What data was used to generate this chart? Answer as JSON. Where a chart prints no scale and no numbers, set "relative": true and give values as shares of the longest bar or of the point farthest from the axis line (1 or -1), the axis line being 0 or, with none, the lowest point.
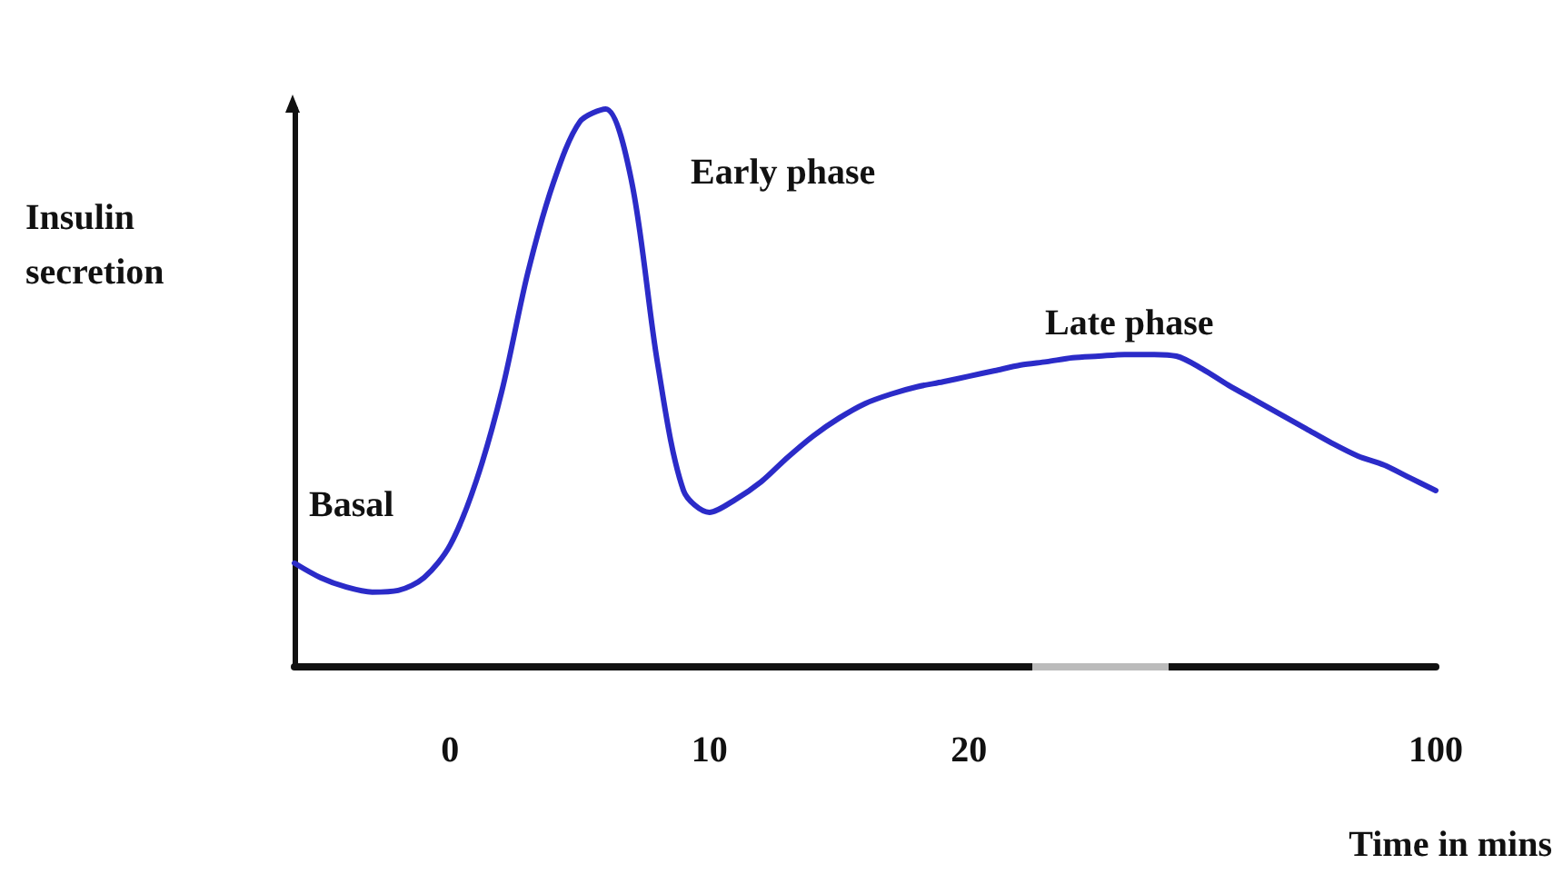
{
  "chart_data": {
    "type": "line",
    "relative": true,
    "xlabel": "Time in mins",
    "ylabel": "Insulin secretion",
    "color": "#2b2bc8",
    "categories": [
      null,
      null,
      null,
      null,
      null,
      null,
      "0",
      null,
      null,
      null,
      null,
      null,
      null,
      null,
      null,
      null,
      "10",
      null,
      null,
      null,
      null,
      null,
      null,
      null,
      null,
      null,
      "20",
      null,
      null,
      null,
      null,
      null,
      null,
      null,
      null,
      null,
      null,
      null,
      null,
      null,
      null,
      null,
      null,
      null,
      "100"
    ],
    "values": [
      0.186,
      0.16,
      0.143,
      0.134,
      0.137,
      0.16,
      0.218,
      0.332,
      0.495,
      0.707,
      0.87,
      0.977,
      1,
      0.87,
      0.544,
      0.316,
      0.277,
      0.3,
      0.332,
      0.375,
      0.414,
      0.446,
      0.472,
      0.489,
      0.502,
      0.511,
      0.521,
      0.531,
      0.541,
      0.547,
      0.554,
      0.557,
      0.56,
      0.56,
      0.557,
      0.534,
      0.505,
      0.479,
      0.453,
      0.427,
      0.401,
      0.378,
      0.362,
      0.339,
      0.316
    ],
    "annotations": [
      "Basal",
      "Early phase",
      "Late phase"
    ]
  }
}
